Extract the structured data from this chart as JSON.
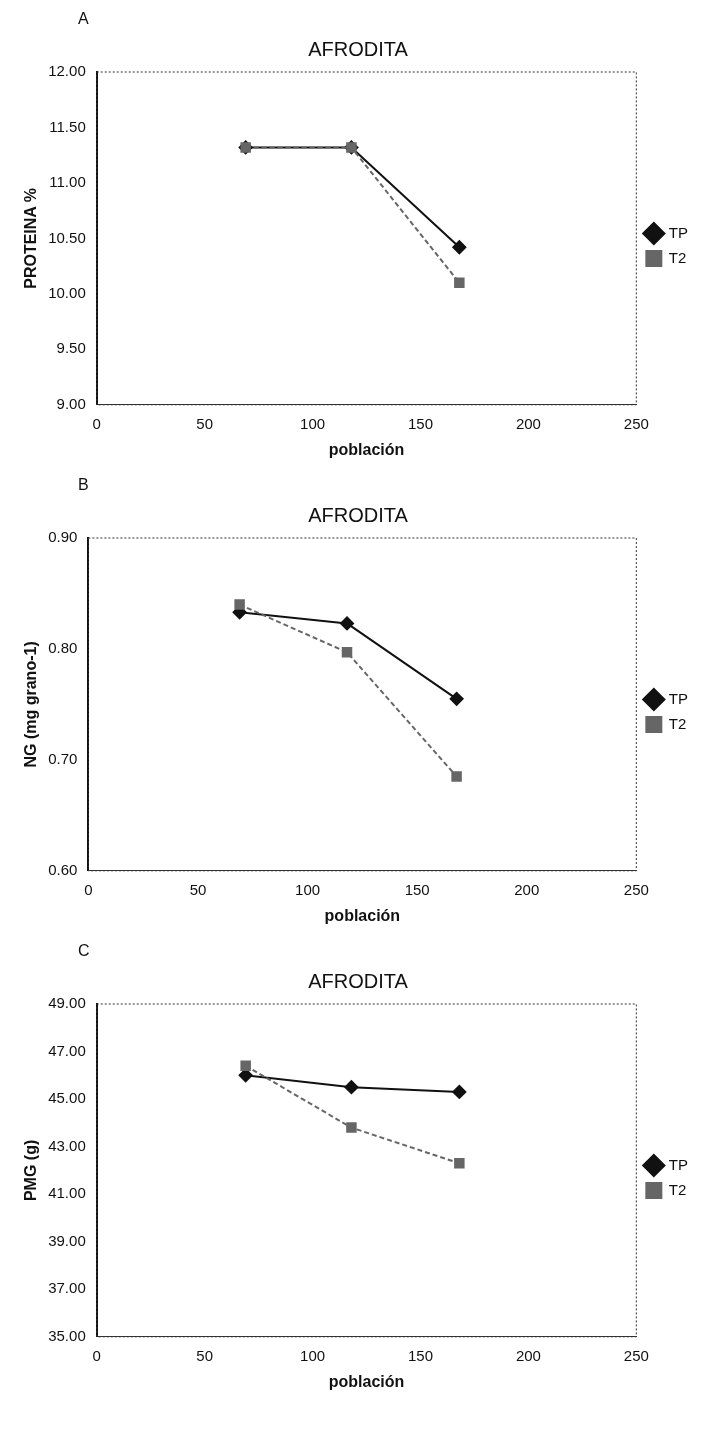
{
  "chart_data": [
    {
      "type": "line",
      "title": "AFRODITA",
      "xlabel": "población",
      "ylabel": "PROTEINA %",
      "annotations": [
        "A"
      ],
      "x": [
        69,
        118,
        168
      ],
      "xlim": [
        0,
        250
      ],
      "xticks": [
        0,
        50,
        100,
        150,
        200,
        250
      ],
      "ylim": [
        9,
        12
      ],
      "yticks": [
        {
          "value": 9,
          "label": "9.00"
        },
        {
          "value": 9.5,
          "label": "9.50"
        },
        {
          "value": 10,
          "label": "10.00"
        },
        {
          "value": 10.5,
          "label": "10.50"
        },
        {
          "value": 11,
          "label": "11.00"
        },
        {
          "value": 11.5,
          "label": "11.50"
        },
        {
          "value": 12,
          "label": "12.00"
        }
      ],
      "grid": false,
      "legend": "right",
      "series": [
        {
          "name": "TP",
          "color": "#111111",
          "marker": "diamond",
          "line_style": "solid",
          "values": [
            11.32,
            11.32,
            10.42
          ]
        },
        {
          "name": "T2",
          "color": "#666666",
          "marker": "square",
          "line_style": "dashed",
          "values": [
            11.32,
            11.32,
            10.1
          ]
        }
      ]
    },
    {
      "type": "line",
      "title": "AFRODITA",
      "xlabel": "población",
      "ylabel": "NG (mg grano-1)",
      "annotations": [
        "B"
      ],
      "x": [
        69,
        118,
        168
      ],
      "xlim": [
        0,
        250
      ],
      "xticks": [
        0,
        50,
        100,
        150,
        200,
        250
      ],
      "ylim": [
        0.6,
        0.9
      ],
      "yticks": [
        {
          "value": 0.6,
          "label": "0.60"
        },
        {
          "value": 0.7,
          "label": "0.70"
        },
        {
          "value": 0.8,
          "label": "0.80"
        },
        {
          "value": 0.9,
          "label": "0.90"
        }
      ],
      "grid": false,
      "legend": "right",
      "series": [
        {
          "name": "TP",
          "color": "#111111",
          "marker": "diamond",
          "line_style": "solid",
          "values": [
            0.833,
            0.823,
            0.755
          ]
        },
        {
          "name": "T2",
          "color": "#666666",
          "marker": "square",
          "line_style": "dashed",
          "values": [
            0.84,
            0.797,
            0.685
          ]
        }
      ]
    },
    {
      "type": "line",
      "title": "AFRODITA",
      "xlabel": "población",
      "ylabel": "PMG (g)",
      "annotations": [
        "C"
      ],
      "x": [
        69,
        118,
        168
      ],
      "xlim": [
        0,
        250
      ],
      "xticks": [
        0,
        50,
        100,
        150,
        200,
        250
      ],
      "ylim": [
        35,
        49
      ],
      "yticks": [
        {
          "value": 35,
          "label": "35.00"
        },
        {
          "value": 37,
          "label": "37.00"
        },
        {
          "value": 39,
          "label": "39.00"
        },
        {
          "value": 41,
          "label": "41.00"
        },
        {
          "value": 43,
          "label": "43.00"
        },
        {
          "value": 45,
          "label": "45.00"
        },
        {
          "value": 47,
          "label": "47.00"
        },
        {
          "value": 49,
          "label": "49.00"
        }
      ],
      "grid": false,
      "legend": "right",
      "series": [
        {
          "name": "TP",
          "color": "#111111",
          "marker": "diamond",
          "line_style": "solid",
          "values": [
            46.0,
            45.5,
            45.3
          ]
        },
        {
          "name": "T2",
          "color": "#666666",
          "marker": "square",
          "line_style": "dashed",
          "values": [
            46.4,
            43.8,
            42.3
          ]
        }
      ]
    }
  ]
}
